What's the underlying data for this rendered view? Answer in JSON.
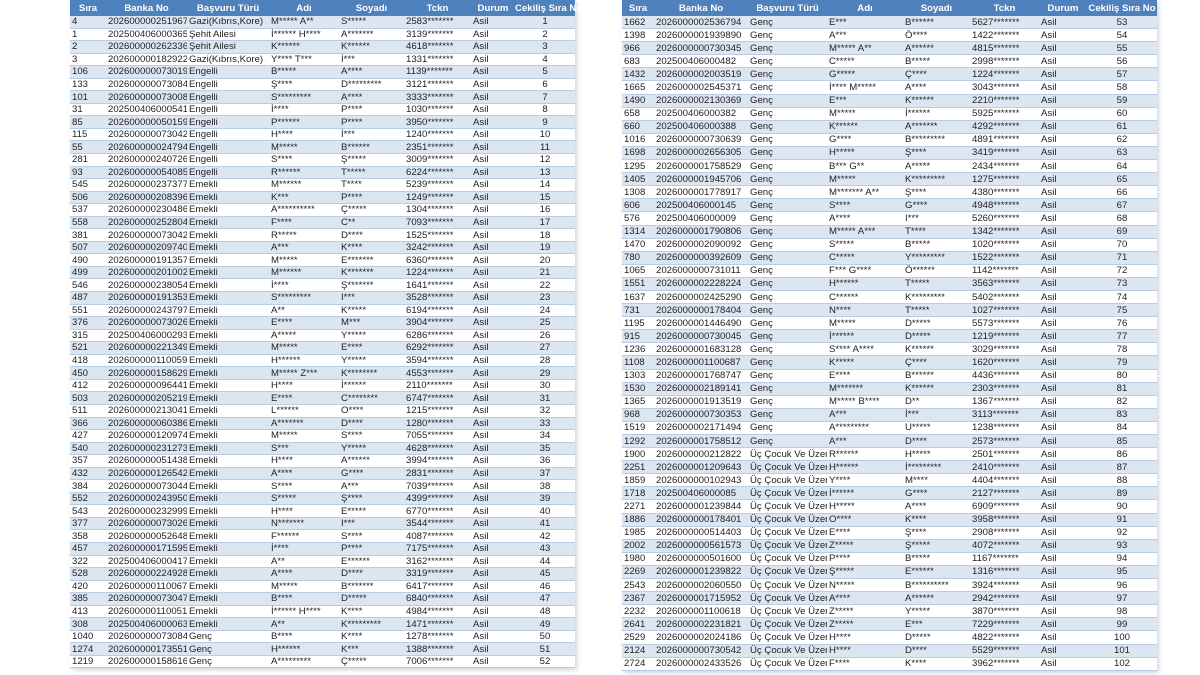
{
  "columns": [
    "Sıra",
    "Banka No",
    "Başvuru Türü",
    "Adı",
    "Soyadı",
    "Tckn",
    "Durum",
    "Cekiliş Sıra No"
  ],
  "colors": {
    "header_bg": "#4f81bd",
    "header_text": "#ffffff",
    "row_alt": "#dce6f1",
    "row": "#ffffff"
  },
  "left_table": {
    "rows": [
      [
        "4",
        "2026000002519676",
        "Gazi(Kıbrıs,Kore)",
        "M***** A**",
        "S*****",
        "2583*******",
        "Asil",
        "1"
      ],
      [
        "1",
        "202500406000365",
        "Şehit Ailesi",
        "İ****** H****",
        "A*******",
        "3139*******",
        "Asil",
        "2"
      ],
      [
        "2",
        "2026000002623362",
        "Şehit Ailesi",
        "K******",
        "K******",
        "4618*******",
        "Asil",
        "3"
      ],
      [
        "3",
        "2026000001829223",
        "Gazi(Kıbrıs,Kore)",
        "Y**** T***",
        "İ***",
        "1331*******",
        "Asil",
        "4"
      ],
      [
        "106",
        "2026000000730197",
        "Engelli",
        "B*****",
        "A****",
        "1139*******",
        "Asil",
        "5"
      ],
      [
        "133",
        "2026000000730842",
        "Engelli",
        "Ş****",
        "D*********",
        "3121*******",
        "Asil",
        "6"
      ],
      [
        "101",
        "2026000000730085",
        "Engelli",
        "S*********",
        "A****",
        "3333*******",
        "Asil",
        "7"
      ],
      [
        "31",
        "202500406000541",
        "Engelli",
        "İ****",
        "P****",
        "1030*******",
        "Asil",
        "8"
      ],
      [
        "85",
        "2026000000501598",
        "Engelli",
        "P******",
        "P****",
        "3950*******",
        "Asil",
        "9"
      ],
      [
        "115",
        "2026000000730426",
        "Engelli",
        "H****",
        "İ***",
        "1240*******",
        "Asil",
        "10"
      ],
      [
        "55",
        "2026000000247941",
        "Engelli",
        "M*****",
        "B******",
        "2351*******",
        "Asil",
        "11"
      ],
      [
        "281",
        "2026000002407261",
        "Engelli",
        "S****",
        "Ş*****",
        "3009*******",
        "Asil",
        "12"
      ],
      [
        "93",
        "2026000000540857",
        "Engelli",
        "R******",
        "T*****",
        "6224*******",
        "Asil",
        "13"
      ],
      [
        "545",
        "2026000002373770",
        "Emekli",
        "M******",
        "T****",
        "5239*******",
        "Asil",
        "14"
      ],
      [
        "506",
        "2026000002083963",
        "Emekli",
        "K***",
        "P****",
        "1249*******",
        "Asil",
        "15"
      ],
      [
        "537",
        "2026000002304869",
        "Emekli",
        "A**********",
        "Ç*****",
        "1304*******",
        "Asil",
        "16"
      ],
      [
        "558",
        "2026000002528046",
        "Emekli",
        "F****",
        "C**",
        "7093*******",
        "Asil",
        "17"
      ],
      [
        "381",
        "2026000000730427",
        "Emekli",
        "R*****",
        "D****",
        "1525*******",
        "Asil",
        "18"
      ],
      [
        "507",
        "2026000002097404",
        "Emekli",
        "A***",
        "K****",
        "3242*******",
        "Asil",
        "19"
      ],
      [
        "490",
        "2026000001913575",
        "Emekli",
        "M*****",
        "E*******",
        "6360*******",
        "Asil",
        "20"
      ],
      [
        "499",
        "2026000002010027",
        "Emekli",
        "M******",
        "K*******",
        "1224*******",
        "Asil",
        "21"
      ],
      [
        "546",
        "2026000002380544",
        "Emekli",
        "İ****",
        "Ş*******",
        "1641*******",
        "Asil",
        "22"
      ],
      [
        "487",
        "2026000001913534",
        "Emekli",
        "S*********",
        "I***",
        "3528*******",
        "Asil",
        "23"
      ],
      [
        "551",
        "2026000002437976",
        "Emekli",
        "A**",
        "K*****",
        "6194*******",
        "Asil",
        "24"
      ],
      [
        "376",
        "2026000000730262",
        "Emekli",
        "E****",
        "M***",
        "3904*******",
        "Asil",
        "25"
      ],
      [
        "315",
        "202500406000293",
        "Emekli",
        "A*****",
        "Y*****",
        "6286*******",
        "Asil",
        "26"
      ],
      [
        "521",
        "2026000002213497",
        "Emekli",
        "M*****",
        "E****",
        "6292*******",
        "Asil",
        "27"
      ],
      [
        "418",
        "2026000001100596",
        "Emekli",
        "H******",
        "Y*****",
        "3594*******",
        "Asil",
        "28"
      ],
      [
        "450",
        "2026000001586296",
        "Emekli",
        "M***** Z***",
        "K********",
        "4553*******",
        "Asil",
        "29"
      ],
      [
        "412",
        "2026000000964416",
        "Emekli",
        "H****",
        "İ******",
        "2110*******",
        "Asil",
        "30"
      ],
      [
        "503",
        "2026000002052196",
        "Emekli",
        "E****",
        "C********",
        "6747*******",
        "Asil",
        "31"
      ],
      [
        "511",
        "2026000002130418",
        "Emekli",
        "L******",
        "O****",
        "1215*******",
        "Asil",
        "32"
      ],
      [
        "366",
        "2026000000603865",
        "Emekli",
        "A*******",
        "D****",
        "1280*******",
        "Asil",
        "33"
      ],
      [
        "427",
        "2026000001209745",
        "Emekli",
        "M*****",
        "S****",
        "7055*******",
        "Asil",
        "34"
      ],
      [
        "540",
        "2026000002312733",
        "Emekli",
        "S***",
        "Y*****",
        "4628*******",
        "Asil",
        "35"
      ],
      [
        "357",
        "2026000000514388",
        "Emekli",
        "H****",
        "A******",
        "3994*******",
        "Asil",
        "36"
      ],
      [
        "432",
        "2026000001265423",
        "Emekli",
        "A****",
        "G****",
        "2831*******",
        "Asil",
        "37"
      ],
      [
        "384",
        "2026000000730443",
        "Emekli",
        "S****",
        "A***",
        "7039*******",
        "Asil",
        "38"
      ],
      [
        "552",
        "2026000002439502",
        "Emekli",
        "S*****",
        "Ş****",
        "4399*******",
        "Asil",
        "39"
      ],
      [
        "543",
        "2026000002329995",
        "Emekli",
        "H****",
        "E*****",
        "6770*******",
        "Asil",
        "40"
      ],
      [
        "377",
        "2026000000730264",
        "Emekli",
        "N*******",
        "I***",
        "3544*******",
        "Asil",
        "41"
      ],
      [
        "358",
        "2026000000526482",
        "Emekli",
        "F******",
        "S****",
        "4087*******",
        "Asil",
        "42"
      ],
      [
        "457",
        "2026000001715951",
        "Emekli",
        "İ****",
        "P****",
        "7175*******",
        "Asil",
        "43"
      ],
      [
        "322",
        "202500406000417",
        "Emekli",
        "A**",
        "E******",
        "3162*******",
        "Asil",
        "44"
      ],
      [
        "528",
        "2026000002249289",
        "Emekli",
        "A****",
        "D****",
        "3319*******",
        "Asil",
        "45"
      ],
      [
        "420",
        "2026000001100670",
        "Emekli",
        "M*****",
        "B*******",
        "6417*******",
        "Asil",
        "46"
      ],
      [
        "385",
        "2026000000730474",
        "Emekli",
        "B****",
        "D*****",
        "6840*******",
        "Asil",
        "47"
      ],
      [
        "413",
        "2026000001100512",
        "Emekli",
        "İ****** H****",
        "K****",
        "4984*******",
        "Asil",
        "48"
      ],
      [
        "308",
        "202500406000063",
        "Emekli",
        "A**",
        "K*********",
        "1471*******",
        "Asil",
        "49"
      ],
      [
        "1040",
        "2026000000730846",
        "Genç",
        "B****",
        "K****",
        "1278*******",
        "Asil",
        "50"
      ],
      [
        "1274",
        "2026000001735512",
        "Genç",
        "H******",
        "K***",
        "1388*******",
        "Asil",
        "51"
      ],
      [
        "1219",
        "2026000001586160",
        "Genç",
        "A*********",
        "Ç*****",
        "7006*******",
        "Asil",
        "52"
      ]
    ]
  },
  "right_table": {
    "rows": [
      [
        "1662",
        "2026000002536794",
        "Genç",
        "E***",
        "B******",
        "5627*******",
        "Asil",
        "53"
      ],
      [
        "1398",
        "2026000001939890",
        "Genç",
        "A***",
        "Ö****",
        "1422*******",
        "Asil",
        "54"
      ],
      [
        "966",
        "2026000000730345",
        "Genç",
        "M***** A**",
        "A******",
        "4815*******",
        "Asil",
        "55"
      ],
      [
        "683",
        "202500406000482",
        "Genç",
        "C*****",
        "B*****",
        "2998*******",
        "Asil",
        "56"
      ],
      [
        "1432",
        "2026000002003519",
        "Genç",
        "G*****",
        "Ç****",
        "1224*******",
        "Asil",
        "57"
      ],
      [
        "1665",
        "2026000002545371",
        "Genç",
        "İ**** M*****",
        "A****",
        "3043*******",
        "Asil",
        "58"
      ],
      [
        "1490",
        "2026000002130369",
        "Genç",
        "E***",
        "K******",
        "2210*******",
        "Asil",
        "59"
      ],
      [
        "658",
        "202500406000382",
        "Genç",
        "M*****",
        "İ******",
        "5925*******",
        "Asil",
        "60"
      ],
      [
        "660",
        "202500406000388",
        "Genç",
        "K******",
        "A*******",
        "4292*******",
        "Asil",
        "61"
      ],
      [
        "1016",
        "2026000000730639",
        "Genç",
        "G****",
        "B*********",
        "4891*******",
        "Asil",
        "62"
      ],
      [
        "1698",
        "2026000002656305",
        "Genç",
        "H*****",
        "Ş****",
        "3419*******",
        "Asil",
        "63"
      ],
      [
        "1295",
        "2026000001758529",
        "Genç",
        "B*** G**",
        "A*****",
        "2434*******",
        "Asil",
        "64"
      ],
      [
        "1405",
        "2026000001945706",
        "Genç",
        "M*****",
        "K*********",
        "1275*******",
        "Asil",
        "65"
      ],
      [
        "1308",
        "2026000001778917",
        "Genç",
        "M******* A**",
        "Ş****",
        "4380*******",
        "Asil",
        "66"
      ],
      [
        "606",
        "202500406000145",
        "Genç",
        "S****",
        "G****",
        "4948*******",
        "Asil",
        "67"
      ],
      [
        "576",
        "202500406000009",
        "Genç",
        "A****",
        "I***",
        "5260*******",
        "Asil",
        "68"
      ],
      [
        "1314",
        "2026000001790806",
        "Genç",
        "M***** A***",
        "T****",
        "1342*******",
        "Asil",
        "69"
      ],
      [
        "1470",
        "2026000002090092",
        "Genç",
        "S*****",
        "B*****",
        "1020*******",
        "Asil",
        "70"
      ],
      [
        "780",
        "2026000000392609",
        "Genç",
        "C*****",
        "Y*********",
        "1522*******",
        "Asil",
        "71"
      ],
      [
        "1065",
        "2026000000731011",
        "Genç",
        "F*** G****",
        "Ö******",
        "1142*******",
        "Asil",
        "72"
      ],
      [
        "1551",
        "2026000002228224",
        "Genç",
        "H******",
        "T*****",
        "3563*******",
        "Asil",
        "73"
      ],
      [
        "1637",
        "2026000002425290",
        "Genç",
        "C******",
        "K*********",
        "5402*******",
        "Asil",
        "74"
      ],
      [
        "731",
        "2026000000178404",
        "Genç",
        "N****",
        "T*****",
        "1027*******",
        "Asil",
        "75"
      ],
      [
        "1195",
        "2026000001446490",
        "Genç",
        "M*****",
        "D*****",
        "5573*******",
        "Asil",
        "76"
      ],
      [
        "915",
        "2026000000730045",
        "Genç",
        "İ******",
        "D*****",
        "1219*******",
        "Asil",
        "77"
      ],
      [
        "1236",
        "2026000001683128",
        "Genç",
        "S**** A****",
        "K******",
        "3029*******",
        "Asil",
        "78"
      ],
      [
        "1108",
        "2026000001100687",
        "Genç",
        "K*****",
        "Ç****",
        "1620*******",
        "Asil",
        "79"
      ],
      [
        "1303",
        "2026000001768747",
        "Genç",
        "E****",
        "B******",
        "4436*******",
        "Asil",
        "80"
      ],
      [
        "1530",
        "2026000002189141",
        "Genç",
        "M*******",
        "K******",
        "2303*******",
        "Asil",
        "81"
      ],
      [
        "1365",
        "2026000001913519",
        "Genç",
        "M***** B****",
        "D**",
        "1367*******",
        "Asil",
        "82"
      ],
      [
        "968",
        "2026000000730353",
        "Genç",
        "A***",
        "İ***",
        "3113*******",
        "Asil",
        "83"
      ],
      [
        "1519",
        "2026000002171494",
        "Genç",
        "A*********",
        "U*****",
        "1238*******",
        "Asil",
        "84"
      ],
      [
        "1292",
        "2026000001758512",
        "Genç",
        "A***",
        "D****",
        "2573*******",
        "Asil",
        "85"
      ],
      [
        "1900",
        "2026000000212822",
        "Üç Çocuk Ve Üzeri",
        "R******",
        "H*****",
        "2501*******",
        "Asil",
        "86"
      ],
      [
        "2251",
        "2026000001209643",
        "Üç Çocuk Ve Üzeri",
        "H******",
        "İ*********",
        "2410*******",
        "Asil",
        "87"
      ],
      [
        "1859",
        "2026000000102943",
        "Üç Çocuk Ve Üzeri",
        "Y****",
        "M****",
        "4404*******",
        "Asil",
        "88"
      ],
      [
        "1718",
        "202500406000085",
        "Üç Çocuk Ve Üzeri",
        "İ******",
        "G****",
        "2127*******",
        "Asil",
        "89"
      ],
      [
        "2271",
        "2026000001239844",
        "Üç Çocuk Ve Üzeri",
        "H*****",
        "A****",
        "6909*******",
        "Asil",
        "90"
      ],
      [
        "1886",
        "2026000000178401",
        "Üç Çocuk Ve Üzeri",
        "O****",
        "K****",
        "3958*******",
        "Asil",
        "91"
      ],
      [
        "1985",
        "2026000000514403",
        "Üç Çocuk Ve Üzeri",
        "E****",
        "Ş****",
        "2908*******",
        "Asil",
        "92"
      ],
      [
        "2002",
        "2026000000561573",
        "Üç Çocuk Ve Üzeri",
        "Z*****",
        "Ş*****",
        "4072*******",
        "Asil",
        "93"
      ],
      [
        "1980",
        "2026000000501600",
        "Üç Çocuk Ve Üzeri",
        "P****",
        "B*****",
        "1167*******",
        "Asil",
        "94"
      ],
      [
        "2269",
        "2026000001239822",
        "Üç Çocuk Ve Üzeri",
        "Ş*****",
        "E******",
        "1316*******",
        "Asil",
        "95"
      ],
      [
        "2543",
        "2026000002060550",
        "Üç Çocuk Ve Üzeri",
        "N*****",
        "B**********",
        "3924*******",
        "Asil",
        "96"
      ],
      [
        "2367",
        "2026000001715952",
        "Üç Çocuk Ve Üzeri",
        "A****",
        "A******",
        "2942*******",
        "Asil",
        "97"
      ],
      [
        "2232",
        "2026000001100618",
        "Üç Çocuk Ve Üzeri",
        "Z*****",
        "Y*****",
        "3870*******",
        "Asil",
        "98"
      ],
      [
        "2641",
        "2026000002231821",
        "Üç Çocuk Ve Üzeri",
        "Z*****",
        "E***",
        "7229*******",
        "Asil",
        "99"
      ],
      [
        "2529",
        "2026000002024186",
        "Üç Çocuk Ve Üzeri",
        "H****",
        "D*****",
        "4822*******",
        "Asil",
        "100"
      ],
      [
        "2124",
        "2026000000730542",
        "Üç Çocuk Ve Üzeri",
        "H****",
        "D****",
        "5529*******",
        "Asil",
        "101"
      ],
      [
        "2724",
        "2026000002433526",
        "Üç Çocuk Ve Üzeri",
        "F****",
        "K****",
        "3962*******",
        "Asil",
        "102"
      ]
    ]
  }
}
